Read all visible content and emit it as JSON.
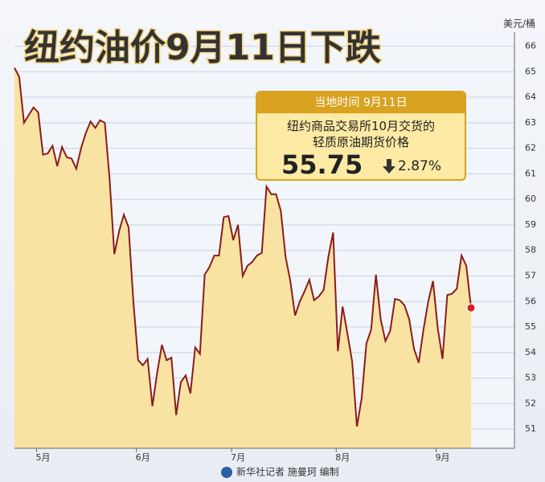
{
  "chart_data": {
    "type": "area",
    "title": "纽约油价9月11日下跌",
    "unit": "美元/桶",
    "credit": "新华社记者 施曼珂 编制",
    "annotation": {
      "header": "当地时间  9月11日",
      "lines": [
        "纽约商品交易所10月交货的",
        "轻质原油期货价格"
      ],
      "price": "55.75",
      "change": "2.87%"
    },
    "categories": [
      null,
      null,
      null,
      null,
      null,
      null,
      "5月",
      null,
      null,
      null,
      null,
      null,
      null,
      null,
      null,
      null,
      null,
      null,
      null,
      null,
      null,
      null,
      null,
      null,
      null,
      null,
      null,
      "6月",
      null,
      null,
      null,
      null,
      null,
      null,
      null,
      null,
      null,
      null,
      null,
      null,
      null,
      null,
      null,
      null,
      null,
      null,
      null,
      "7月",
      null,
      null,
      null,
      null,
      null,
      null,
      null,
      null,
      null,
      null,
      null,
      null,
      null,
      null,
      null,
      null,
      null,
      null,
      null,
      null,
      null,
      "8月",
      null,
      null,
      null,
      null,
      null,
      null,
      null,
      null,
      null,
      null,
      null,
      null,
      null,
      null,
      null,
      null,
      null,
      null,
      null,
      null,
      "9月",
      null,
      null,
      null,
      null,
      null,
      null
    ],
    "series": [
      {
        "color": "#8b1c1c",
        "fill": "#f8e3a3",
        "values": [
          65.15,
          64.8,
          63.0,
          63.3,
          63.6,
          63.4,
          61.75,
          61.8,
          62.1,
          61.3,
          62.05,
          61.65,
          61.6,
          61.2,
          62.0,
          62.6,
          63.05,
          62.8,
          63.1,
          63.0,
          60.8,
          57.85,
          58.75,
          59.4,
          58.9,
          56.0,
          53.7,
          53.5,
          53.75,
          51.9,
          53.2,
          54.3,
          53.7,
          53.8,
          51.55,
          52.85,
          53.1,
          52.4,
          54.2,
          53.95,
          57.05,
          57.35,
          57.8,
          57.8,
          59.3,
          59.35,
          58.4,
          59.0,
          57.0,
          57.4,
          57.55,
          57.8,
          57.9,
          60.5,
          60.2,
          60.2,
          59.55,
          57.75,
          56.8,
          55.45,
          56.0,
          56.4,
          56.85,
          56.05,
          56.2,
          56.45,
          57.75,
          58.7,
          54.05,
          55.8,
          54.75,
          53.65,
          51.1,
          52.2,
          54.35,
          54.9,
          57.05,
          55.3,
          54.45,
          54.85,
          56.1,
          56.05,
          55.85,
          55.3,
          54.15,
          53.6,
          54.9,
          56.0,
          56.8,
          54.95,
          53.75,
          56.25,
          56.3,
          56.5,
          57.8,
          57.4,
          55.75
        ]
      }
    ],
    "highlight_color": "#d62020",
    "ylim": [
      50.25,
      66.55
    ],
    "yticks": [
      51,
      52,
      53,
      54,
      55,
      56,
      57,
      58,
      59,
      60,
      61,
      62,
      63,
      64,
      65,
      66
    ],
    "grid": true
  }
}
